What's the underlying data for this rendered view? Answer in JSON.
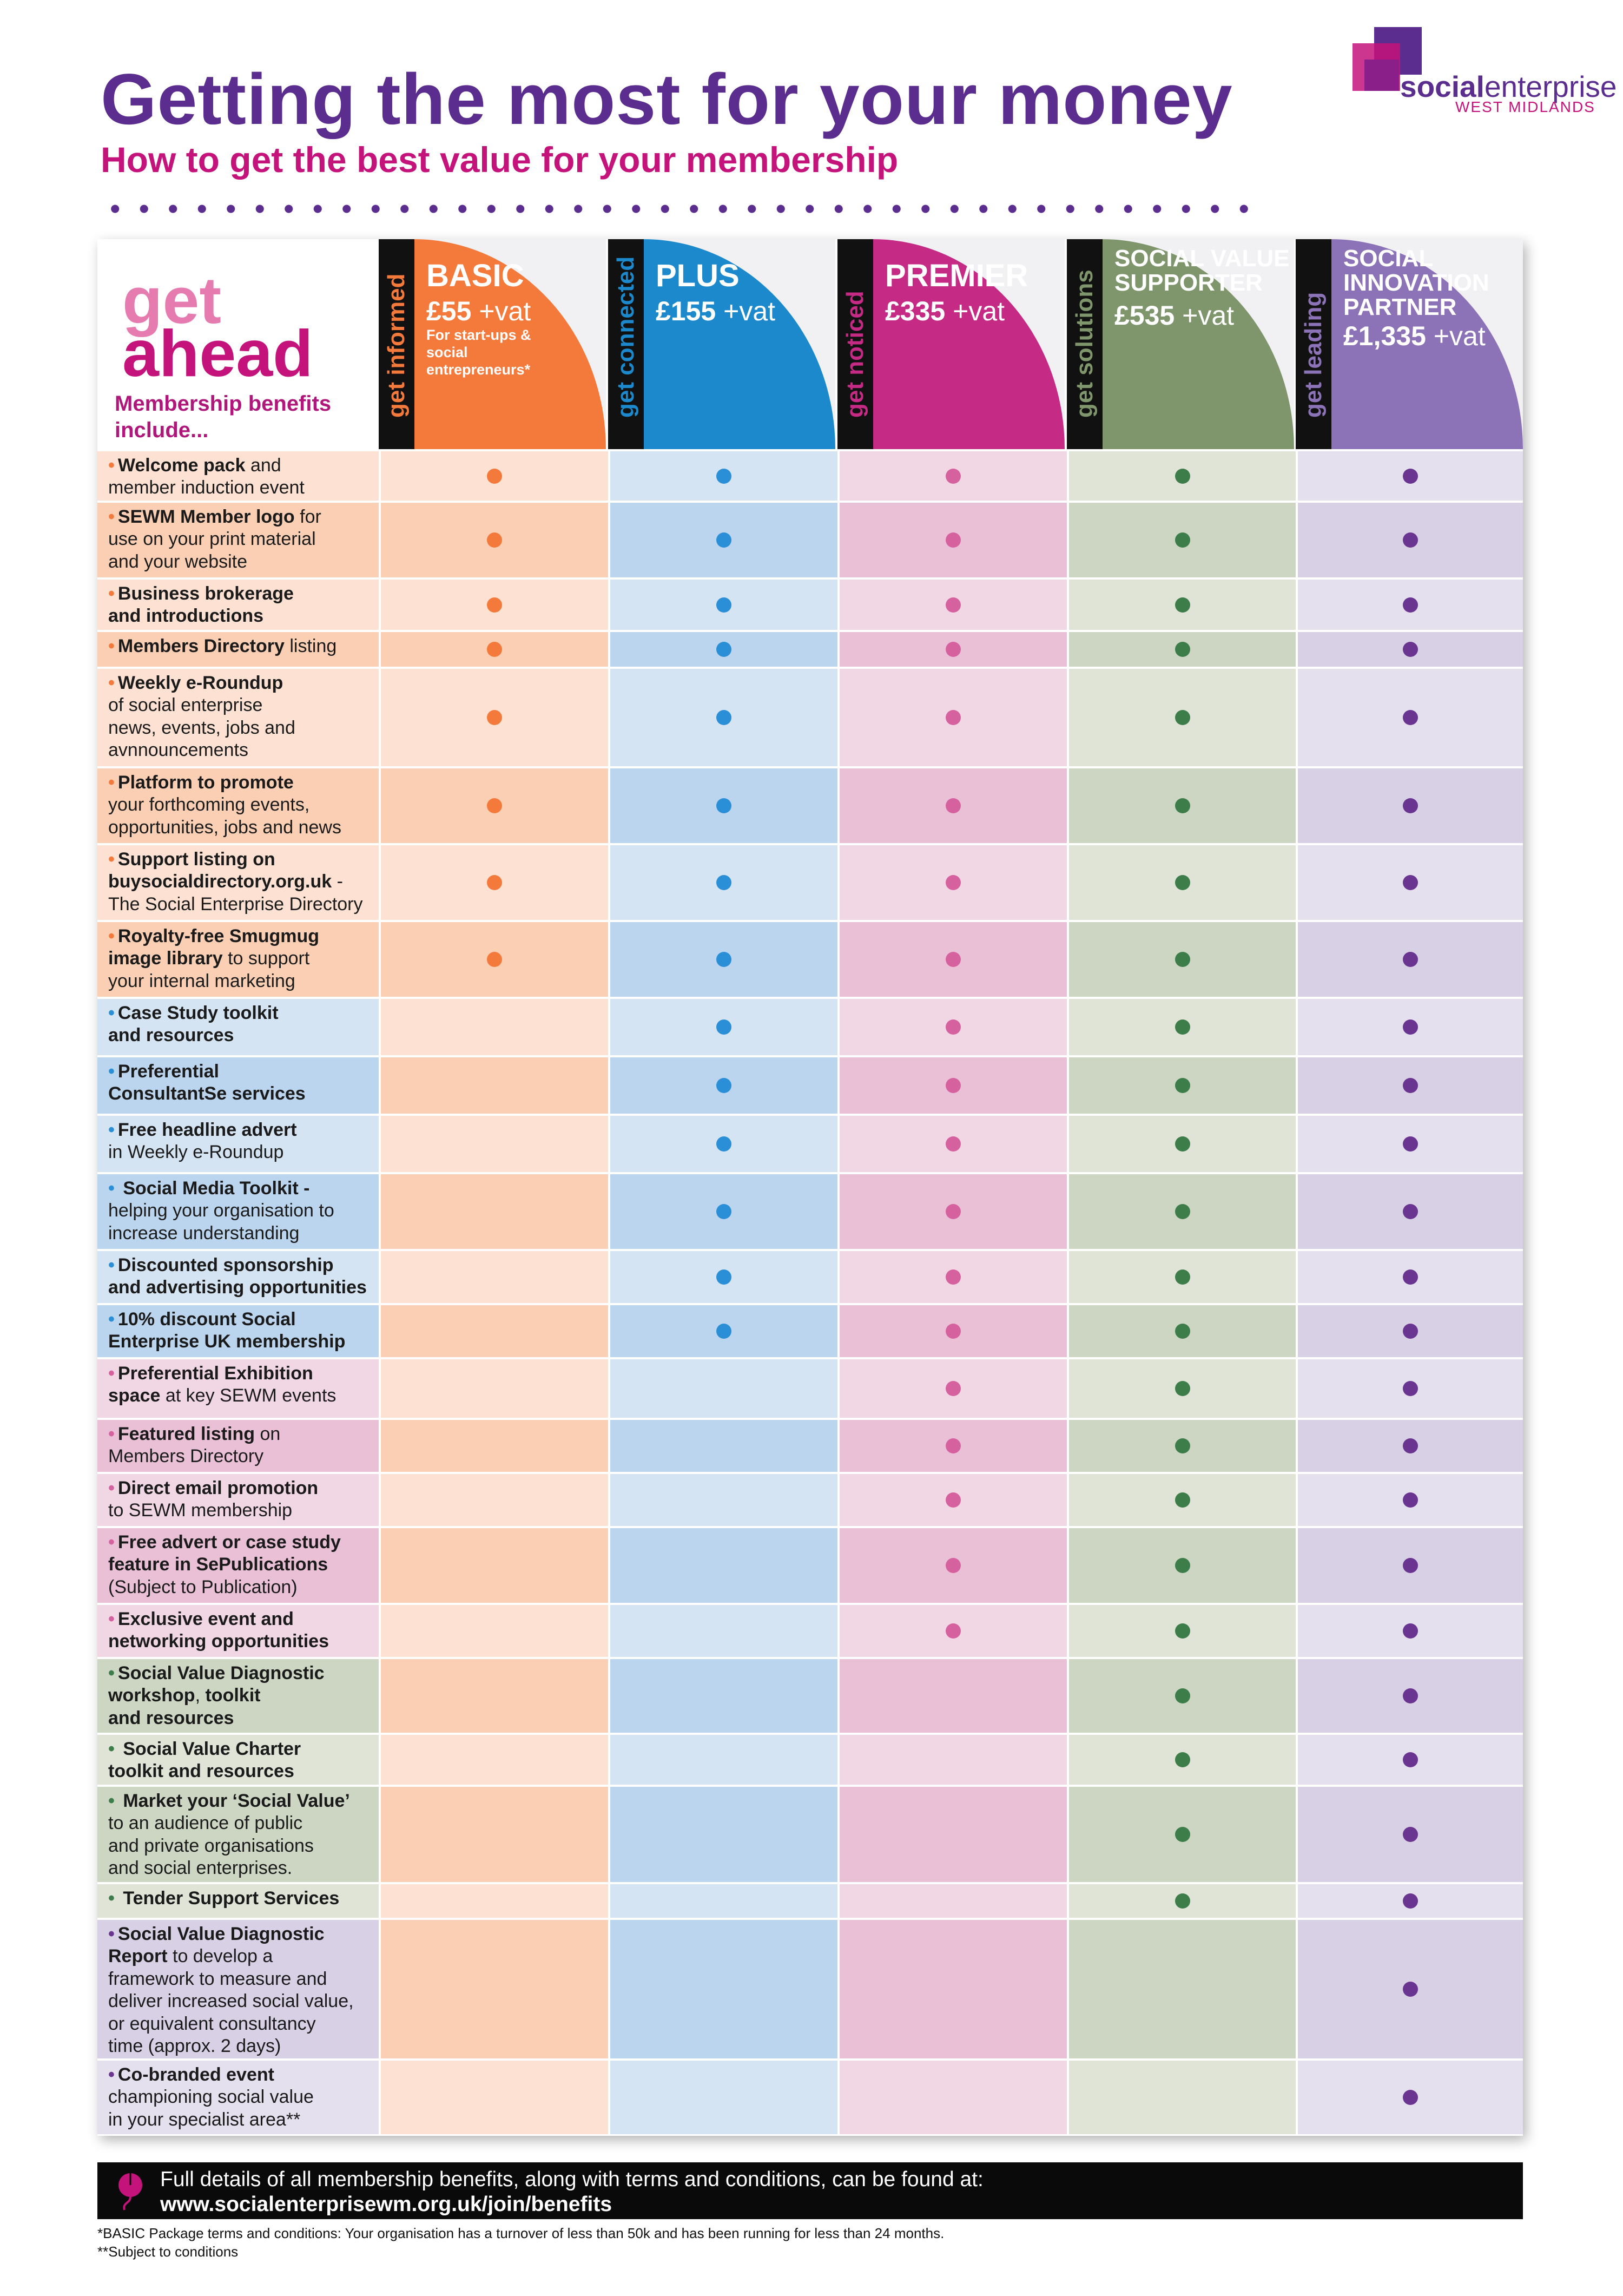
{
  "header": {
    "title": "Getting the most for your money",
    "subtitle": "How to get the best value for your membership"
  },
  "logo": {
    "word_bold": "social",
    "word_regular": "enterprise",
    "region": "WEST MIDLANDS"
  },
  "table": {
    "intro": {
      "get": "get",
      "ahead": "ahead",
      "benefits_label": "Membership benefits include..."
    },
    "tiers": [
      {
        "tagline": "get informed",
        "name": "BASIC",
        "price": "£55",
        "vat": " +vat",
        "note": "For start-ups & social entrepreneurs*",
        "color": "#f47a3c",
        "row_colors": [
          "#fde1d2",
          "#fbcfb4"
        ]
      },
      {
        "tagline": "get connected",
        "name": "PLUS",
        "price": "£155",
        "vat": " +vat",
        "note": "",
        "color": "#1c89cc",
        "row_colors": [
          "#d5e4f3",
          "#bcd5ee"
        ]
      },
      {
        "tagline": "get noticed",
        "name": "PREMIER",
        "price": "£335",
        "vat": " +vat",
        "note": "",
        "color": "#c52a84",
        "row_colors": [
          "#f1d7e4",
          "#e9c0d6"
        ]
      },
      {
        "tagline": "get solutions",
        "name": "SOCIAL VALUE SUPPORTER",
        "price": "£535",
        "vat": " +vat",
        "note": "",
        "color": "#7f966d",
        "row_colors": [
          "#dfe4d7",
          "#ccd6c3"
        ]
      },
      {
        "tagline": "get leading",
        "name": "SOCIAL INNOVATION PARTNER",
        "price": "£1,335",
        "vat": " +vat",
        "note": "",
        "color": "#8c72b6",
        "row_colors": [
          "#e4e0ee",
          "#d8d1e6"
        ]
      }
    ],
    "dot_colors": [
      "#f47a3c",
      "#2a8fd6",
      "#d6619f",
      "#3d7d4a",
      "#6a3590"
    ],
    "rows": [
      {
        "group": 0,
        "shade": 0,
        "lines": [
          [
            [
              "b",
              "Welcome pack"
            ],
            [
              "n",
              " and"
            ]
          ],
          [
            [
              "n",
              "member induction event"
            ]
          ]
        ]
      },
      {
        "group": 0,
        "shade": 1,
        "lines": [
          [
            [
              "b",
              "SEWM Member logo"
            ],
            [
              "n",
              " for"
            ]
          ],
          [
            [
              "n",
              "use on your print material"
            ]
          ],
          [
            [
              "n",
              "and your website"
            ]
          ]
        ]
      },
      {
        "group": 0,
        "shade": 0,
        "lines": [
          [
            [
              "b",
              "Business brokerage"
            ]
          ],
          [
            [
              "b",
              "and introductions"
            ]
          ]
        ]
      },
      {
        "group": 0,
        "shade": 1,
        "lines": [
          [
            [
              "b",
              "Members Directory"
            ],
            [
              "n",
              " listing"
            ]
          ]
        ]
      },
      {
        "group": 0,
        "shade": 0,
        "lines": [
          [
            [
              "b",
              "Weekly e-Roundup"
            ]
          ],
          [
            [
              "n",
              "of social enterprise"
            ]
          ],
          [
            [
              "n",
              "news, events, jobs and"
            ]
          ],
          [
            [
              "n",
              "avnnouncements"
            ]
          ]
        ]
      },
      {
        "group": 0,
        "shade": 1,
        "lines": [
          [
            [
              "b",
              "Platform to promote"
            ]
          ],
          [
            [
              "n",
              "your forthcoming events,"
            ]
          ],
          [
            [
              "n",
              "opportunities, jobs and news"
            ]
          ]
        ]
      },
      {
        "group": 0,
        "shade": 0,
        "lines": [
          [
            [
              "b",
              "Support listing on"
            ]
          ],
          [
            [
              "b",
              "buysocialdirectory.org.uk"
            ],
            [
              "n",
              " -"
            ]
          ],
          [
            [
              "n",
              "The Social Enterprise Directory"
            ]
          ]
        ]
      },
      {
        "group": 0,
        "shade": 1,
        "lines": [
          [
            [
              "b",
              "Royalty-free Smugmug"
            ]
          ],
          [
            [
              "b",
              "image library"
            ],
            [
              "n",
              " to support"
            ]
          ],
          [
            [
              "n",
              "your internal marketing"
            ]
          ]
        ]
      },
      {
        "group": 1,
        "shade": 0,
        "lines": [
          [
            [
              "b",
              "Case Study toolkit"
            ]
          ],
          [
            [
              "b",
              "and resources"
            ]
          ]
        ]
      },
      {
        "group": 1,
        "shade": 1,
        "lines": [
          [
            [
              "b",
              "Preferential"
            ]
          ],
          [
            [
              "b",
              "ConsultantSe services"
            ]
          ]
        ]
      },
      {
        "group": 1,
        "shade": 0,
        "lines": [
          [
            [
              "b",
              "Free headline advert"
            ]
          ],
          [
            [
              "n",
              "in Weekly e-Roundup"
            ]
          ]
        ]
      },
      {
        "group": 1,
        "shade": 1,
        "lines": [
          [
            [
              "b",
              " Social Media Toolkit -"
            ]
          ],
          [
            [
              "n",
              "helping your organisation to"
            ]
          ],
          [
            [
              "n",
              "increase understanding"
            ]
          ]
        ]
      },
      {
        "group": 1,
        "shade": 0,
        "lines": [
          [
            [
              "b",
              "Discounted sponsorship"
            ]
          ],
          [
            [
              "b",
              "and advertising opportunities"
            ]
          ]
        ]
      },
      {
        "group": 1,
        "shade": 1,
        "lines": [
          [
            [
              "b",
              "10% discount Social"
            ]
          ],
          [
            [
              "b",
              "Enterprise UK membership"
            ]
          ]
        ]
      },
      {
        "group": 2,
        "shade": 0,
        "lines": [
          [
            [
              "b",
              "Preferential Exhibition"
            ]
          ],
          [
            [
              "b",
              "space"
            ],
            [
              "n",
              " at key SEWM events"
            ]
          ]
        ]
      },
      {
        "group": 2,
        "shade": 1,
        "lines": [
          [
            [
              "b",
              "Featured listing"
            ],
            [
              "n",
              " on"
            ]
          ],
          [
            [
              "n",
              "Members Directory"
            ]
          ]
        ]
      },
      {
        "group": 2,
        "shade": 0,
        "lines": [
          [
            [
              "b",
              "Direct email promotion"
            ]
          ],
          [
            [
              "n",
              "to SEWM membership"
            ]
          ]
        ]
      },
      {
        "group": 2,
        "shade": 1,
        "lines": [
          [
            [
              "b",
              "Free advert or case study"
            ]
          ],
          [
            [
              "b",
              "feature in SePublications"
            ]
          ],
          [
            [
              "n",
              "(Subject to Publication)"
            ]
          ]
        ]
      },
      {
        "group": 2,
        "shade": 0,
        "lines": [
          [
            [
              "b",
              "Exclusive event and"
            ]
          ],
          [
            [
              "b",
              "networking opportunities"
            ]
          ]
        ]
      },
      {
        "group": 3,
        "shade": 1,
        "lines": [
          [
            [
              "b",
              "Social Value Diagnostic"
            ]
          ],
          [
            [
              "b",
              "workshop"
            ],
            [
              "n",
              ", "
            ],
            [
              "b",
              "toolkit"
            ]
          ],
          [
            [
              "b",
              "and resources"
            ]
          ]
        ]
      },
      {
        "group": 3,
        "shade": 0,
        "lines": [
          [
            [
              "b",
              " Social Value Charter"
            ]
          ],
          [
            [
              "b",
              "toolkit and resources"
            ]
          ]
        ]
      },
      {
        "group": 3,
        "shade": 1,
        "lines": [
          [
            [
              "b",
              " Market your ‘Social Value’"
            ]
          ],
          [
            [
              "n",
              "to an audience of public"
            ]
          ],
          [
            [
              "n",
              "and private organisations"
            ]
          ],
          [
            [
              "n",
              "and social enterprises."
            ]
          ]
        ]
      },
      {
        "group": 3,
        "shade": 0,
        "lines": [
          [
            [
              "b",
              " Tender Support Services"
            ]
          ]
        ]
      },
      {
        "group": 4,
        "shade": 1,
        "lines": [
          [
            [
              "b",
              "Social Value Diagnostic"
            ]
          ],
          [
            [
              "b",
              "Report"
            ],
            [
              "n",
              " to develop a"
            ]
          ],
          [
            [
              "n",
              "framework to measure and"
            ]
          ],
          [
            [
              "n",
              "deliver increased social value,"
            ]
          ],
          [
            [
              "n",
              "or equivalent consultancy"
            ]
          ],
          [
            [
              "n",
              "time (approx. 2 days)"
            ]
          ]
        ]
      },
      {
        "group": 4,
        "shade": 0,
        "lines": [
          [
            [
              "b",
              "Co-branded event"
            ]
          ],
          [
            [
              "n",
              "championing social value"
            ]
          ],
          [
            [
              "n",
              "in your specialist area**"
            ]
          ]
        ]
      }
    ]
  },
  "footer": {
    "line1": "Full details of all membership benefits, along with terms and conditions, can be found at:",
    "line2": "www.socialenterprisewm.org.uk/join/benefits",
    "footnote1": "*BASIC Package terms and conditions: Your organisation has a turnover of less than 50k and has been running for less than 24 months.",
    "footnote2": "**Subject to conditions"
  }
}
